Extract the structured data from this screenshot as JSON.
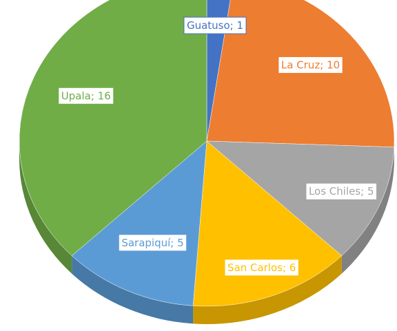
{
  "chart_data": {
    "type": "pie",
    "categories": [
      "Guatuso",
      "La Cruz",
      "Los Chiles",
      "San Carlos",
      "Sarapiquí",
      "Upala"
    ],
    "values": [
      1,
      10,
      5,
      6,
      5,
      16
    ],
    "colors": [
      "#4472c4",
      "#ed7d31",
      "#a5a5a5",
      "#ffc000",
      "#5b9bd5",
      "#70ad47"
    ],
    "label_separator": "; ",
    "three_d": true
  }
}
